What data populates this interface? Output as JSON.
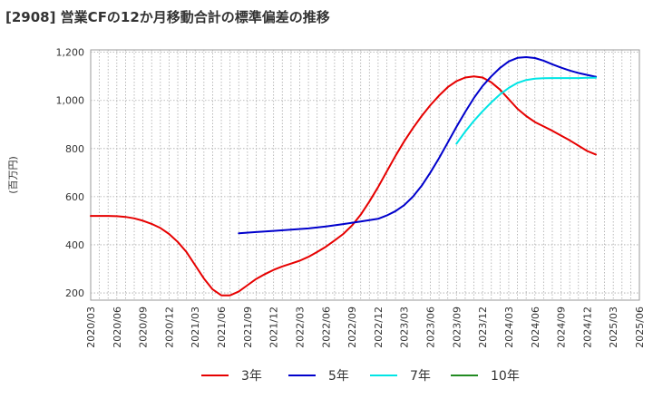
{
  "chart_data": {
    "type": "line",
    "title": "[2908]  営業CFの12か月移動合計の標準偏差の推移",
    "ylabel": "(百万円)",
    "xlabel": "",
    "ylim": [
      170,
      1210
    ],
    "yticks": [
      200,
      400,
      600,
      800,
      "1,000",
      "1,200"
    ],
    "grid": true,
    "legend_position": "bottom",
    "x_labels": [
      "2020/03",
      "2020/06",
      "2020/09",
      "2020/12",
      "2021/03",
      "2021/06",
      "2021/09",
      "2021/12",
      "2022/03",
      "2022/06",
      "2022/09",
      "2022/12",
      "2023/03",
      "2023/06",
      "2023/09",
      "2023/12",
      "2024/03",
      "2024/06",
      "2024/09",
      "2024/12",
      "2025/03",
      "2025/06"
    ],
    "series": [
      {
        "name": "3年",
        "color": "#e60000",
        "values": [
          [
            "2020/03",
            520
          ],
          [
            "2020/04",
            520
          ],
          [
            "2020/05",
            520
          ],
          [
            "2020/06",
            519
          ],
          [
            "2020/07",
            516
          ],
          [
            "2020/08",
            510
          ],
          [
            "2020/09",
            500
          ],
          [
            "2020/10",
            487
          ],
          [
            "2020/11",
            470
          ],
          [
            "2020/12",
            445
          ],
          [
            "2020/13",
            412
          ],
          [
            "2021/02",
            370
          ],
          [
            "2021/03",
            315
          ],
          [
            "2021/04",
            260
          ],
          [
            "2021/05",
            215
          ],
          [
            "2021/06",
            190
          ],
          [
            "2021/07",
            190
          ],
          [
            "2021/08",
            206
          ],
          [
            "2021/09",
            232
          ],
          [
            "2021/10",
            258
          ],
          [
            "2021/11",
            278
          ],
          [
            "2021/12",
            296
          ],
          [
            "2022/01",
            310
          ],
          [
            "2022/02",
            322
          ],
          [
            "2022/03",
            334
          ],
          [
            "2022/04",
            350
          ],
          [
            "2022/05",
            370
          ],
          [
            "2022/06",
            392
          ],
          [
            "2022/07",
            418
          ],
          [
            "2022/08",
            445
          ],
          [
            "2022/09",
            480
          ],
          [
            "2022/10",
            525
          ],
          [
            "2022/11",
            580
          ],
          [
            "2022/12",
            640
          ],
          [
            "2023/01",
            705
          ],
          [
            "2023/02",
            770
          ],
          [
            "2023/03",
            830
          ],
          [
            "2023/04",
            885
          ],
          [
            "2023/05",
            935
          ],
          [
            "2023/06",
            980
          ],
          [
            "2023/07",
            1020
          ],
          [
            "2023/08",
            1055
          ],
          [
            "2023/09",
            1080
          ],
          [
            "2023/10",
            1095
          ],
          [
            "2023/11",
            1100
          ],
          [
            "2023/12",
            1095
          ],
          [
            "2024/01",
            1075
          ],
          [
            "2024/02",
            1045
          ],
          [
            "2024/03",
            1005
          ],
          [
            "2024/04",
            965
          ],
          [
            "2024/05",
            935
          ],
          [
            "2024/06",
            910
          ],
          [
            "2024/07",
            892
          ],
          [
            "2024/08",
            874
          ],
          [
            "2024/09",
            854
          ],
          [
            "2024/10",
            834
          ],
          [
            "2024/11",
            812
          ],
          [
            "2024/12",
            790
          ],
          [
            "2025/01",
            775
          ]
        ]
      },
      {
        "name": "5年",
        "color": "#0000cc",
        "values": [
          [
            "2021/08",
            448
          ],
          [
            "2021/10",
            453
          ],
          [
            "2021/12",
            458
          ],
          [
            "2022/02",
            463
          ],
          [
            "2022/04",
            468
          ],
          [
            "2022/06",
            476
          ],
          [
            "2022/08",
            486
          ],
          [
            "2022/10",
            497
          ],
          [
            "2022/12",
            508
          ],
          [
            "2023/01",
            522
          ],
          [
            "2023/02",
            540
          ],
          [
            "2023/03",
            565
          ],
          [
            "2023/04",
            600
          ],
          [
            "2023/05",
            645
          ],
          [
            "2023/06",
            700
          ],
          [
            "2023/07",
            760
          ],
          [
            "2023/08",
            825
          ],
          [
            "2023/09",
            890
          ],
          [
            "2023/10",
            952
          ],
          [
            "2023/11",
            1010
          ],
          [
            "2023/12",
            1060
          ],
          [
            "2024/01",
            1100
          ],
          [
            "2024/02",
            1135
          ],
          [
            "2024/03",
            1162
          ],
          [
            "2024/04",
            1177
          ],
          [
            "2024/05",
            1180
          ],
          [
            "2024/06",
            1176
          ],
          [
            "2024/07",
            1165
          ],
          [
            "2024/08",
            1150
          ],
          [
            "2024/09",
            1136
          ],
          [
            "2024/10",
            1124
          ],
          [
            "2024/11",
            1114
          ],
          [
            "2024/12",
            1106
          ],
          [
            "2025/01",
            1098
          ]
        ]
      },
      {
        "name": "7年",
        "color": "#00e5e5",
        "values": [
          [
            "2023/09",
            820
          ],
          [
            "2023/10",
            870
          ],
          [
            "2023/11",
            915
          ],
          [
            "2023/12",
            955
          ],
          [
            "2024/01",
            992
          ],
          [
            "2024/02",
            1025
          ],
          [
            "2024/03",
            1052
          ],
          [
            "2024/04",
            1073
          ],
          [
            "2024/05",
            1085
          ],
          [
            "2024/06",
            1090
          ],
          [
            "2024/07",
            1092
          ],
          [
            "2024/08",
            1093
          ],
          [
            "2024/09",
            1093
          ],
          [
            "2024/10",
            1093
          ],
          [
            "2024/11",
            1093
          ],
          [
            "2024/12",
            1094
          ],
          [
            "2025/01",
            1094
          ]
        ]
      },
      {
        "name": "10年",
        "color": "#228b22",
        "values": []
      }
    ]
  }
}
